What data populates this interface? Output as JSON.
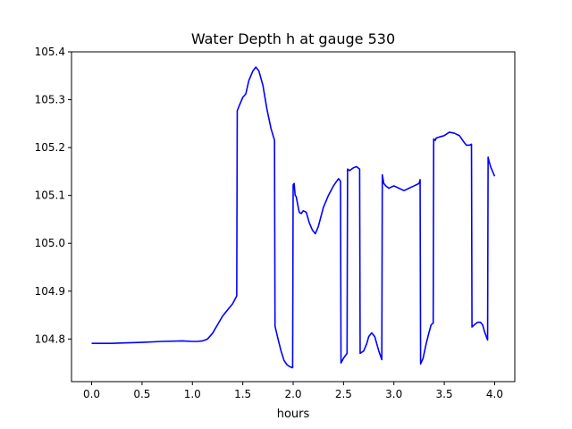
{
  "chart_data": {
    "type": "line",
    "title": "Water Depth h at gauge 530",
    "xlabel": "hours",
    "ylabel": "",
    "xlim": [
      -0.2,
      4.2
    ],
    "ylim": [
      104.711,
      105.4
    ],
    "xticks": [
      0.0,
      0.5,
      1.0,
      1.5,
      2.0,
      2.5,
      3.0,
      3.5,
      4.0
    ],
    "xtick_labels": [
      "0.0",
      "0.5",
      "1.0",
      "1.5",
      "2.0",
      "2.5",
      "3.0",
      "3.5",
      "4.0"
    ],
    "yticks": [
      104.8,
      104.9,
      105.0,
      105.1,
      105.2,
      105.3,
      105.4
    ],
    "ytick_labels": [
      "104.8",
      "104.9",
      "105.0",
      "105.1",
      "105.2",
      "105.3",
      "105.4"
    ],
    "grid": false,
    "series": [
      {
        "color": "#0000ff",
        "x": [
          0.0,
          0.2,
          0.5,
          0.7,
          0.9,
          1.0,
          1.05,
          1.1,
          1.15,
          1.2,
          1.25,
          1.3,
          1.35,
          1.4,
          1.44,
          1.445,
          1.47,
          1.5,
          1.53,
          1.56,
          1.6,
          1.63,
          1.66,
          1.7,
          1.74,
          1.78,
          1.815,
          1.82,
          1.85,
          1.88,
          1.91,
          1.94,
          1.97,
          1.995,
          2.0,
          2.01,
          2.02,
          2.03,
          2.06,
          2.08,
          2.1,
          2.13,
          2.16,
          2.19,
          2.22,
          2.25,
          2.3,
          2.35,
          2.4,
          2.45,
          2.47,
          2.475,
          2.5,
          2.535,
          2.54,
          2.56,
          2.6,
          2.63,
          2.66,
          2.665,
          2.7,
          2.73,
          2.75,
          2.78,
          2.81,
          2.85,
          2.88,
          2.885,
          2.9,
          2.92,
          2.95,
          3.0,
          3.05,
          3.1,
          3.15,
          3.2,
          3.25,
          3.26,
          3.265,
          3.29,
          3.32,
          3.35,
          3.37,
          3.39,
          3.395,
          3.41,
          3.42,
          3.45,
          3.5,
          3.55,
          3.6,
          3.65,
          3.7,
          3.72,
          3.75,
          3.77,
          3.775,
          3.8,
          3.83,
          3.86,
          3.88,
          3.9,
          3.93,
          3.935,
          3.94,
          3.96,
          4.0
        ],
        "y": [
          104.791,
          104.791,
          104.793,
          104.795,
          104.796,
          104.795,
          104.795,
          104.796,
          104.8,
          104.812,
          104.83,
          104.848,
          104.861,
          104.874,
          104.89,
          105.277,
          105.29,
          105.305,
          105.312,
          105.34,
          105.36,
          105.368,
          105.36,
          105.33,
          105.28,
          105.24,
          105.215,
          104.827,
          104.8,
          104.775,
          104.755,
          104.746,
          104.742,
          104.74,
          105.122,
          105.125,
          105.1,
          105.098,
          105.065,
          105.062,
          105.068,
          105.065,
          105.043,
          105.028,
          105.02,
          105.035,
          105.075,
          105.1,
          105.12,
          105.135,
          105.13,
          104.75,
          104.76,
          104.77,
          105.155,
          105.152,
          105.158,
          105.16,
          105.155,
          104.77,
          104.775,
          104.79,
          104.805,
          104.813,
          104.805,
          104.775,
          104.757,
          105.143,
          105.125,
          105.12,
          105.115,
          105.12,
          105.115,
          105.11,
          105.115,
          105.12,
          105.125,
          105.133,
          104.748,
          104.76,
          104.79,
          104.815,
          104.83,
          104.833,
          105.218,
          105.215,
          105.22,
          105.222,
          105.225,
          105.232,
          105.23,
          105.225,
          105.21,
          105.205,
          105.205,
          105.207,
          104.825,
          104.83,
          104.835,
          104.835,
          104.83,
          104.815,
          104.798,
          105.18,
          105.175,
          105.16,
          105.14
        ]
      }
    ]
  }
}
